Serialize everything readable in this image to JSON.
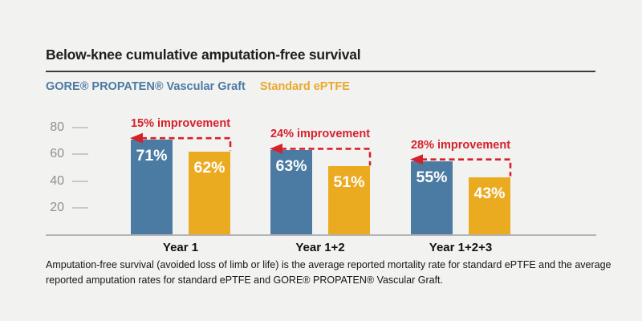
{
  "header": {
    "title": "Below-knee cumulative amputation-free survival"
  },
  "legend": [
    {
      "label": "GORE® PROPATEN® Vascular Graft",
      "color": "#4b7ba3"
    },
    {
      "label": "Standard ePTFE",
      "color": "#eaa92a"
    }
  ],
  "chart_data": {
    "type": "bar",
    "categories": [
      "Year 1",
      "Year 1+2",
      "Year 1+2+3"
    ],
    "series": [
      {
        "name": "GORE® PROPATEN® Vascular Graft",
        "color": "#4b7ba3",
        "values": [
          71,
          63,
          55
        ],
        "labels": [
          "71%",
          "63%",
          "55%"
        ]
      },
      {
        "name": "Standard ePTFE",
        "color": "#ebab21",
        "values": [
          62,
          51,
          43
        ],
        "labels": [
          "62%",
          "51%",
          "43%"
        ]
      }
    ],
    "annotations": [
      "15% improvement",
      "24% improvement",
      "28% improvement"
    ],
    "annotation_color": "#d6212b",
    "yticks": [
      20,
      40,
      60,
      80
    ],
    "ylim": [
      0,
      88
    ],
    "grid": false,
    "legend_position": "top",
    "value_label_color": "#ffffff"
  },
  "footnote": "Amputation-free survival (avoided loss of limb or life) is the average reported mortality rate for standard ePTFE and the average reported amputation rates for standard ePTFE and GORE® PROPATEN® Vascular Graft."
}
